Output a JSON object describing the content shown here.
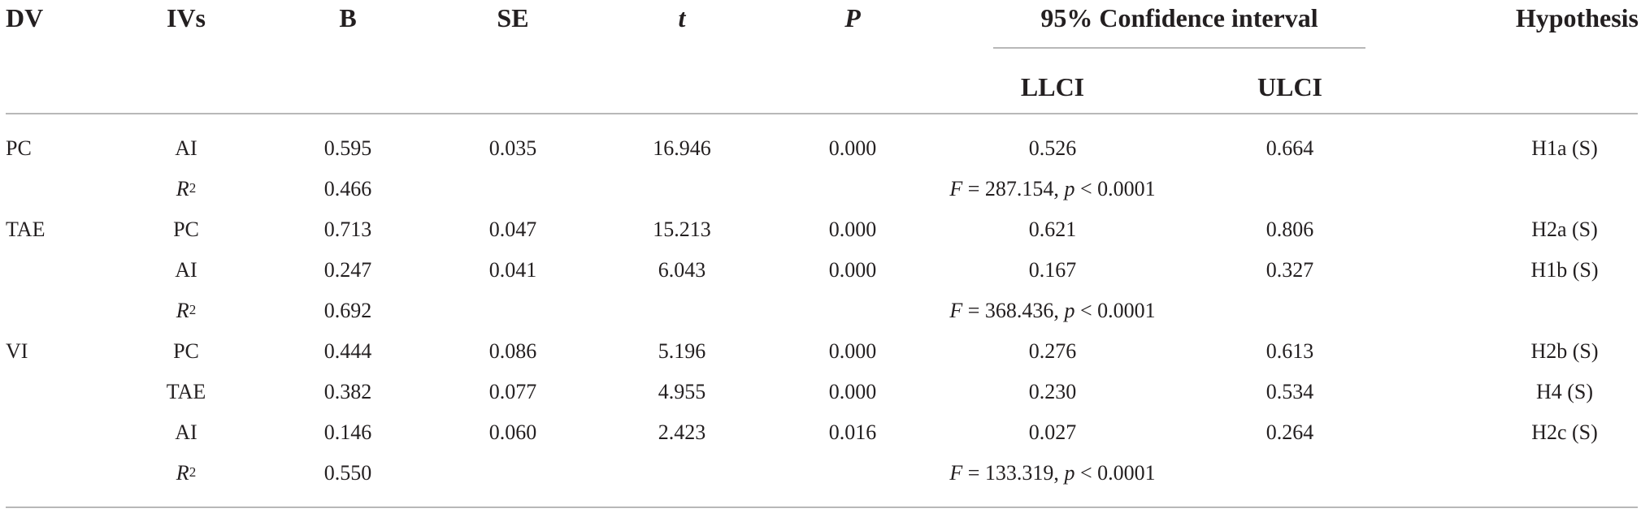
{
  "header": {
    "dv": "DV",
    "ivs": "IVs",
    "b": "B",
    "se": "SE",
    "t": "t",
    "p": "P",
    "ci": "95% Confidence interval",
    "llci": "LLCI",
    "ulci": "ULCI",
    "hypothesis": "Hypothesis"
  },
  "rows": [
    {
      "dv": "PC",
      "iv": "AI",
      "b": "0.595",
      "se": "0.035",
      "t": "16.946",
      "p": "0.000",
      "llci": "0.526",
      "ulci": "0.664",
      "hyp": "H1a (S)"
    },
    {
      "r2_label": "R",
      "r2_sup": "2",
      "b": "0.466",
      "f_label": "F",
      "f_text": " = 287.154, ",
      "p_label": "p",
      "p_text": " < 0.0001"
    },
    {
      "dv": "TAE",
      "iv": "PC",
      "b": "0.713",
      "se": "0.047",
      "t": "15.213",
      "p": "0.000",
      "llci": "0.621",
      "ulci": "0.806",
      "hyp": "H2a (S)"
    },
    {
      "iv": "AI",
      "b": "0.247",
      "se": "0.041",
      "t": "6.043",
      "p": "0.000",
      "llci": "0.167",
      "ulci": "0.327",
      "hyp": "H1b (S)"
    },
    {
      "r2_label": "R",
      "r2_sup": "2",
      "b": "0.692",
      "f_label": "F",
      "f_text": " = 368.436, ",
      "p_label": "p",
      "p_text": " < 0.0001"
    },
    {
      "dv": "VI",
      "iv": "PC",
      "b": "0.444",
      "se": "0.086",
      "t": "5.196",
      "p": "0.000",
      "llci": "0.276",
      "ulci": "0.613",
      "hyp": "H2b (S)"
    },
    {
      "iv": "TAE",
      "b": "0.382",
      "se": "0.077",
      "t": "4.955",
      "p": "0.000",
      "llci": "0.230",
      "ulci": "0.534",
      "hyp": "H4 (S)"
    },
    {
      "iv": "AI",
      "b": "0.146",
      "se": "0.060",
      "t": "2.423",
      "p": "0.016",
      "llci": "0.027",
      "ulci": "0.264",
      "hyp": "H2c (S)"
    },
    {
      "r2_label": "R",
      "r2_sup": "2",
      "b": "0.550",
      "f_label": "F",
      "f_text": " = 133.319, ",
      "p_label": "p",
      "p_text": " < 0.0001"
    }
  ]
}
